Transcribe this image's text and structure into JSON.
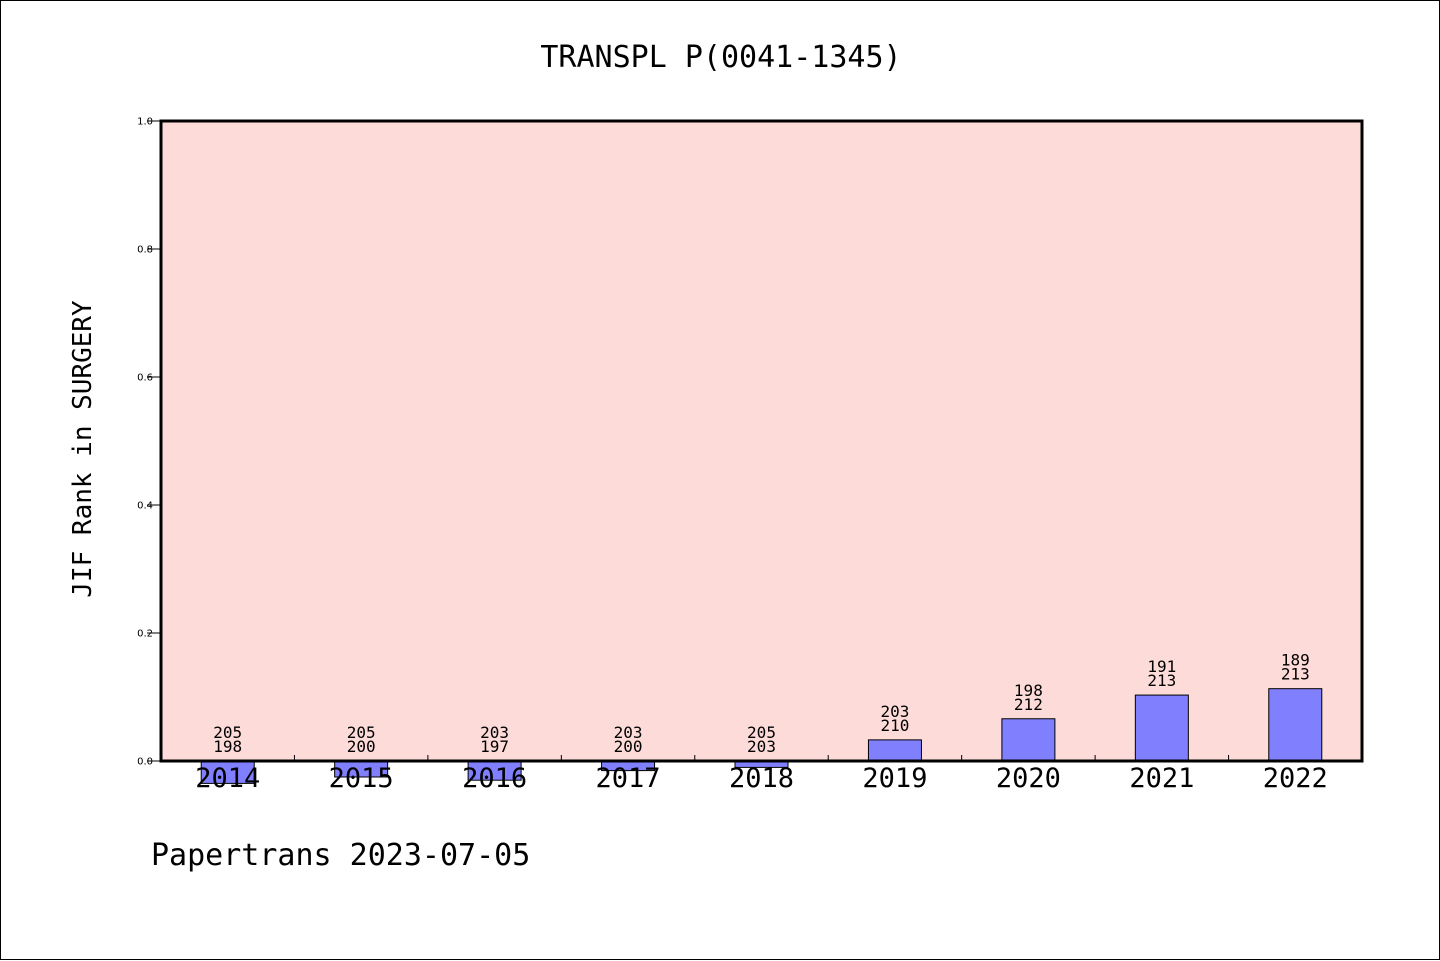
{
  "chart_data": {
    "type": "bar",
    "title": "TRANSPL P(0041-1345)",
    "ylabel": "JIF Rank in SURGERY",
    "xlabel": "",
    "ylim": [
      0,
      1.0
    ],
    "yticks": [
      "0.0",
      "0.2",
      "0.4",
      "0.6",
      "0.8",
      "1.0"
    ],
    "grid": false,
    "colors": {
      "plot_background": "#fddbd8",
      "bar": "#8080ff",
      "axis": "#000000"
    },
    "categories": [
      "2014",
      "2015",
      "2016",
      "2017",
      "2018",
      "2019",
      "2020",
      "2021",
      "2022"
    ],
    "values": [
      -0.035,
      -0.025,
      -0.03,
      -0.015,
      -0.01,
      0.033,
      0.066,
      0.103,
      0.113
    ],
    "ranks": [
      "205",
      "205",
      "203",
      "203",
      "205",
      "203",
      "198",
      "191",
      "189"
    ],
    "totals": [
      "198",
      "200",
      "197",
      "200",
      "203",
      "210",
      "212",
      "213",
      "213"
    ]
  },
  "footer": "Papertrans 2023-07-05"
}
